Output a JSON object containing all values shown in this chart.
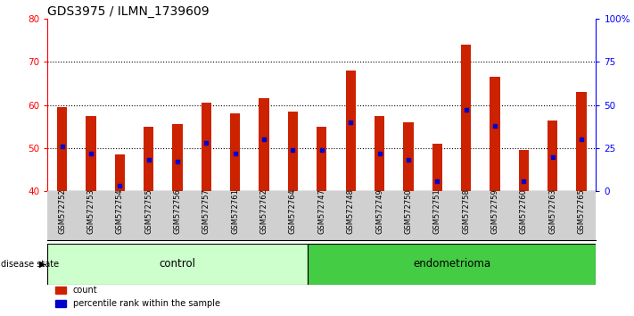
{
  "title": "GDS3975 / ILMN_1739609",
  "samples": [
    "GSM572752",
    "GSM572753",
    "GSM572754",
    "GSM572755",
    "GSM572756",
    "GSM572757",
    "GSM572761",
    "GSM572762",
    "GSM572764",
    "GSM572747",
    "GSM572748",
    "GSM572749",
    "GSM572750",
    "GSM572751",
    "GSM572758",
    "GSM572759",
    "GSM572760",
    "GSM572763",
    "GSM572765"
  ],
  "counts": [
    59.5,
    57.5,
    48.5,
    55.0,
    55.5,
    60.5,
    58.0,
    61.5,
    58.5,
    55.0,
    68.0,
    57.5,
    56.0,
    51.0,
    74.0,
    66.5,
    49.5,
    56.5,
    63.0
  ],
  "percentile_ranks": [
    26,
    22,
    3,
    18,
    17,
    28,
    22,
    30,
    24,
    24,
    40,
    22,
    18,
    6,
    47,
    38,
    6,
    20,
    30
  ],
  "groups": [
    "control",
    "control",
    "control",
    "control",
    "control",
    "control",
    "control",
    "control",
    "control",
    "endometrioma",
    "endometrioma",
    "endometrioma",
    "endometrioma",
    "endometrioma",
    "endometrioma",
    "endometrioma",
    "endometrioma",
    "endometrioma",
    "endometrioma"
  ],
  "ylim_left": [
    40,
    80
  ],
  "ylim_right": [
    0,
    100
  ],
  "bar_color": "#cc2200",
  "marker_color": "#0000cc",
  "control_color": "#ccffcc",
  "endometrioma_color": "#44cc44",
  "label_bg_color": "#d0d0d0",
  "title_fontsize": 10,
  "tick_fontsize": 7.5,
  "bar_width": 0.35
}
